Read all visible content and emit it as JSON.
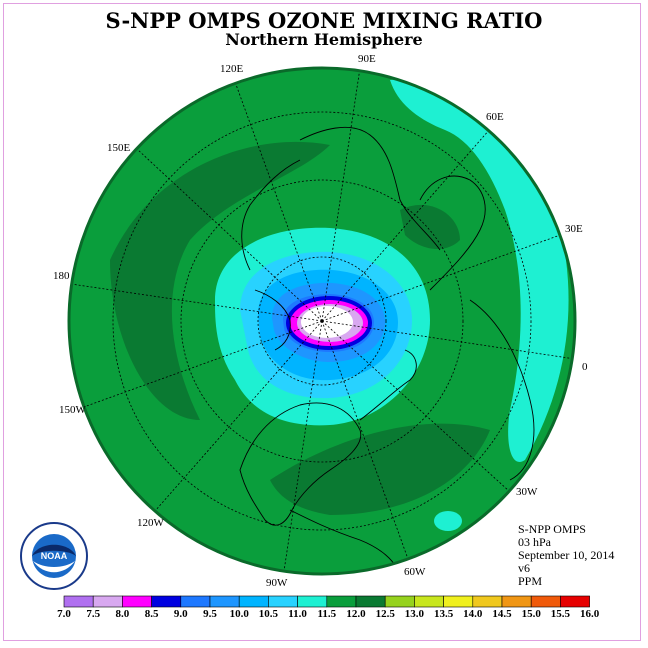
{
  "title": "S-NPP OMPS OZONE MIXING RATIO",
  "subtitle": "Northern Hemisphere",
  "longitude_labels": [
    "90E",
    "60E",
    "30E",
    "0",
    "30W",
    "60W",
    "90W",
    "120W",
    "150W",
    "180",
    "150E",
    "120E"
  ],
  "info": {
    "instrument": "S-NPP OMPS",
    "level": "03 hPa",
    "date": "September 10, 2014",
    "version": "v6",
    "units": "PPM"
  },
  "logo_text": "NOAA",
  "colorbar": {
    "ticks": [
      "7.0",
      "7.5",
      "8.0",
      "8.5",
      "9.0",
      "9.5",
      "10.0",
      "10.5",
      "11.0",
      "11.5",
      "12.0",
      "12.5",
      "13.0",
      "13.5",
      "14.0",
      "14.5",
      "15.0",
      "15.5",
      "16.0"
    ],
    "colors": [
      "#b070f0",
      "#d8a8f0",
      "#ff00ff",
      "#0000e0",
      "#1e78ff",
      "#1e96ff",
      "#00b4ff",
      "#28d2ff",
      "#1ef0d2",
      "#0a9e3c",
      "#0a7a32",
      "#96d21e",
      "#c8e61e",
      "#f0f01e",
      "#f0c81e",
      "#f09614",
      "#f05a0a",
      "#e60000",
      "#8c5028"
    ]
  }
}
